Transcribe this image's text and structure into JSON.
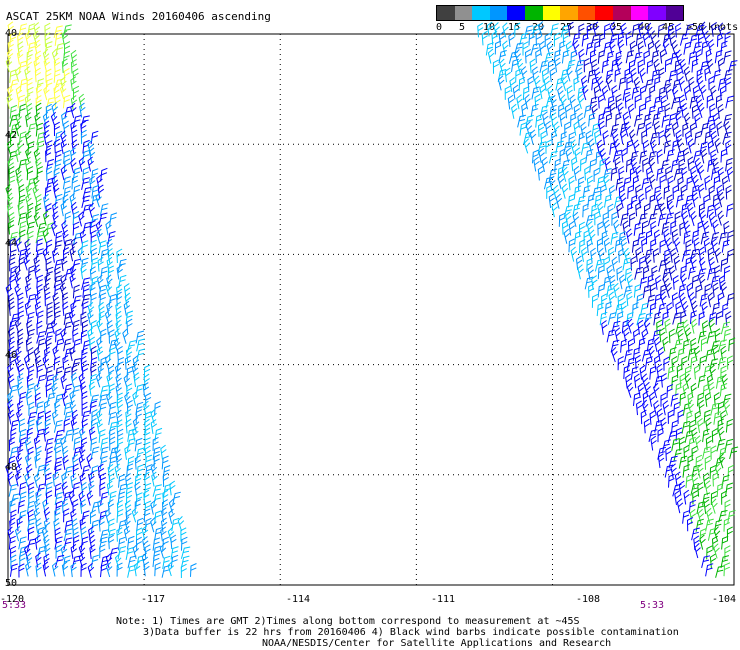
{
  "header": {
    "title": "ASCAT 25KM NOAA Winds 20160406 ascending"
  },
  "scale": {
    "unit_label": "knots",
    "labels": [
      "0",
      "5",
      "10",
      "15",
      "20",
      "25",
      "30",
      "35",
      "40",
      "45",
      ">50"
    ],
    "colors": [
      "#404040",
      "#909090",
      "#00c8ff",
      "#0096ff",
      "#0000ff",
      "#00b400",
      "#ffff00",
      "#ffa500",
      "#ff5000",
      "#ff0000",
      "#b4005a",
      "#ff00ff",
      "#8000ff",
      "#500096"
    ]
  },
  "axes": {
    "lat_labels": [
      "40",
      "42",
      "44",
      "46",
      "48",
      "50"
    ],
    "lon_labels": [
      "-120",
      "-117",
      "-114",
      "-111",
      "-108",
      "-104"
    ]
  },
  "times": {
    "left": "5:33",
    "right": "5:33"
  },
  "notes": {
    "line1": "Note: 1) Times are GMT 2)Times along bottom correspond to measurement at ~45S",
    "line2": "3)Data buffer is 22 hrs from 20160406 4) Black wind barbs indicate possible contamination",
    "line3": "NOAA/NESDIS/Center for Satellite Applications and Research"
  },
  "chart_data": {
    "type": "wind-barb-map",
    "title": "ASCAT 25KM NOAA Winds 20160406 ascending",
    "x_label": "",
    "y_label": "",
    "lat_range": [
      40,
      50
    ],
    "lon_range": [
      -120,
      -104
    ],
    "grid": true,
    "swaths": [
      {
        "name": "left",
        "lon_top": [
          -120,
          -118.6
        ],
        "lon_bottom": [
          -120,
          -115.8
        ]
      },
      {
        "name": "right",
        "lon_top": [
          -109.7,
          -104
        ],
        "lon_bottom": [
          -104.6,
          -104
        ]
      }
    ]
  }
}
